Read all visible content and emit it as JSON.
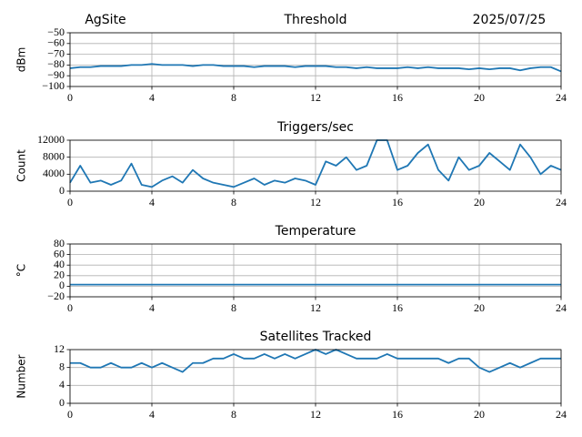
{
  "chart_data": [
    {
      "type": "line",
      "title": "Threshold",
      "annotations": [
        "AgSite",
        "2025/07/25"
      ],
      "ylabel": "dBm",
      "color": "#1f77b4",
      "grid": true,
      "x": [
        0,
        0.5,
        1,
        1.5,
        2,
        2.5,
        3,
        3.5,
        4,
        4.5,
        5,
        5.5,
        6,
        6.5,
        7,
        7.5,
        8,
        8.5,
        9,
        9.5,
        10,
        10.5,
        11,
        11.5,
        12,
        12.5,
        13,
        13.5,
        14,
        14.5,
        15,
        15.5,
        16,
        16.5,
        17,
        17.5,
        18,
        18.5,
        19,
        19.5,
        20,
        20.5,
        21,
        21.5,
        22,
        22.5,
        23,
        23.5,
        24
      ],
      "values": [
        -83,
        -82,
        -82,
        -81,
        -81,
        -81,
        -80,
        -80,
        -79,
        -80,
        -80,
        -80,
        -81,
        -80,
        -80,
        -81,
        -81,
        -81,
        -82,
        -81,
        -81,
        -81,
        -82,
        -81,
        -81,
        -81,
        -82,
        -82,
        -83,
        -82,
        -83,
        -83,
        -83,
        -82,
        -83,
        -82,
        -83,
        -83,
        -83,
        -84,
        -83,
        -84,
        -83,
        -83,
        -85,
        -83,
        -82,
        -82,
        -86
      ],
      "xlim": [
        0,
        24
      ],
      "xticks": [
        0,
        4,
        8,
        12,
        16,
        20,
        24
      ],
      "ylim": [
        -100,
        -50
      ],
      "yticks": [
        {
          "value": -100,
          "label": "−100"
        },
        {
          "value": -90,
          "label": "−90"
        },
        {
          "value": -80,
          "label": "−80"
        },
        {
          "value": -70,
          "label": "−70"
        },
        {
          "value": -60,
          "label": "−60"
        },
        {
          "value": -50,
          "label": "−50"
        }
      ]
    },
    {
      "type": "line",
      "title": "Triggers/sec",
      "ylabel": "Count",
      "color": "#1f77b4",
      "grid": true,
      "x": [
        0,
        0.5,
        1,
        1.5,
        2,
        2.5,
        3,
        3.5,
        4,
        4.5,
        5,
        5.5,
        6,
        6.5,
        7,
        7.5,
        8,
        8.5,
        9,
        9.5,
        10,
        10.5,
        11,
        11.5,
        12,
        12.5,
        13,
        13.5,
        14,
        14.5,
        15,
        15.5,
        16,
        16.5,
        17,
        17.5,
        18,
        18.5,
        19,
        19.5,
        20,
        20.5,
        21,
        21.5,
        22,
        22.5,
        23,
        23.5,
        24
      ],
      "values": [
        2000,
        6000,
        2000,
        2500,
        1500,
        2500,
        6500,
        1500,
        1000,
        2500,
        3500,
        2000,
        5000,
        3000,
        2000,
        1500,
        1000,
        2000,
        3000,
        1500,
        2500,
        2000,
        3000,
        2500,
        1500,
        7000,
        6000,
        8000,
        5000,
        6000,
        12000,
        12000,
        5000,
        6000,
        9000,
        11000,
        5000,
        2500,
        8000,
        5000,
        6000,
        9000,
        7000,
        5000,
        11000,
        8000,
        4000,
        6000,
        5000
      ],
      "xlim": [
        0,
        24
      ],
      "xticks": [
        0,
        4,
        8,
        12,
        16,
        20,
        24
      ],
      "ylim": [
        0,
        12000
      ],
      "yticks": [
        0,
        4000,
        8000,
        12000
      ]
    },
    {
      "type": "line",
      "title": "Temperature",
      "ylabel": "°C",
      "color": "#1f77b4",
      "grid": true,
      "x": [
        0,
        24
      ],
      "values": [
        3,
        3
      ],
      "xlim": [
        0,
        24
      ],
      "xticks": [
        0,
        4,
        8,
        12,
        16,
        20,
        24
      ],
      "ylim": [
        -20,
        80
      ],
      "yticks": [
        {
          "value": -20,
          "label": "−20"
        },
        0,
        20,
        40,
        60,
        80
      ]
    },
    {
      "type": "line",
      "title": "Satellites Tracked",
      "ylabel": "Number",
      "color": "#1f77b4",
      "grid": true,
      "x": [
        0,
        0.5,
        1,
        1.5,
        2,
        2.5,
        3,
        3.5,
        4,
        4.5,
        5,
        5.5,
        6,
        6.5,
        7,
        7.5,
        8,
        8.5,
        9,
        9.5,
        10,
        10.5,
        11,
        11.5,
        12,
        12.5,
        13,
        13.5,
        14,
        14.5,
        15,
        15.5,
        16,
        16.5,
        17,
        17.5,
        18,
        18.5,
        19,
        19.5,
        20,
        20.5,
        21,
        21.5,
        22,
        22.5,
        23,
        23.5,
        24
      ],
      "values": [
        9,
        9,
        8,
        8,
        9,
        8,
        8,
        9,
        8,
        9,
        8,
        7,
        9,
        9,
        10,
        10,
        11,
        10,
        10,
        11,
        10,
        11,
        10,
        11,
        12,
        11,
        12,
        11,
        10,
        10,
        10,
        11,
        10,
        10,
        10,
        10,
        10,
        9,
        10,
        10,
        8,
        7,
        8,
        9,
        8,
        9,
        10,
        10,
        10
      ],
      "xlim": [
        0,
        24
      ],
      "xticks": [
        0,
        4,
        8,
        12,
        16,
        20,
        24
      ],
      "ylim": [
        0,
        12
      ],
      "yticks": [
        0,
        4,
        8,
        12
      ]
    }
  ]
}
